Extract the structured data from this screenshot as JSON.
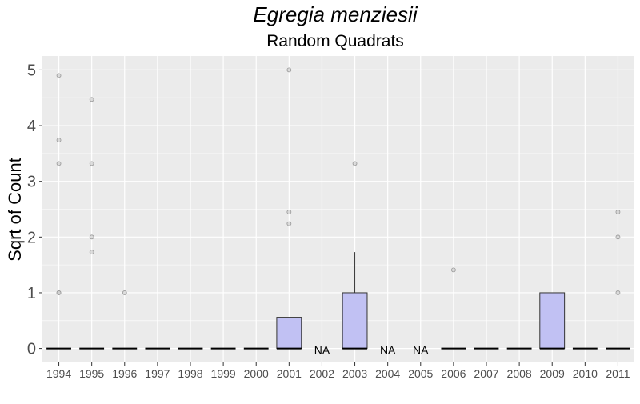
{
  "chart_data": {
    "type": "boxplot",
    "title": "Egregia menziesii",
    "subtitle": "Random Quadrats",
    "xlabel": "",
    "ylabel": "Sqrt of Count",
    "ylim": [
      -0.25,
      5.25
    ],
    "yticks": [
      0,
      1,
      2,
      3,
      4,
      5
    ],
    "grid": true,
    "colors": {
      "panel": "#ebebeb",
      "grid": "#ffffff",
      "box_fill": "#c1c1f3",
      "box_stroke": "#333333",
      "median": "#000000",
      "outlier": "#999999"
    },
    "categories": [
      "1994",
      "1995",
      "1996",
      "1997",
      "1998",
      "1999",
      "2000",
      "2001",
      "2002",
      "2003",
      "2004",
      "2005",
      "2006",
      "2007",
      "2008",
      "2009",
      "2010",
      "2011"
    ],
    "boxes": [
      {
        "year": "1994",
        "na": false,
        "q1": 0,
        "median": 0,
        "q3": 0,
        "whisker_low": 0,
        "whisker_high": 0,
        "outliers": [
          1,
          1,
          3.32,
          3.74,
          4.9
        ]
      },
      {
        "year": "1995",
        "na": false,
        "q1": 0,
        "median": 0,
        "q3": 0,
        "whisker_low": 0,
        "whisker_high": 0,
        "outliers": [
          1.73,
          2,
          3.32,
          4.47
        ]
      },
      {
        "year": "1996",
        "na": false,
        "q1": 0,
        "median": 0,
        "q3": 0,
        "whisker_low": 0,
        "whisker_high": 0,
        "outliers": [
          1
        ]
      },
      {
        "year": "1997",
        "na": false,
        "q1": 0,
        "median": 0,
        "q3": 0,
        "whisker_low": 0,
        "whisker_high": 0,
        "outliers": []
      },
      {
        "year": "1998",
        "na": false,
        "q1": 0,
        "median": 0,
        "q3": 0,
        "whisker_low": 0,
        "whisker_high": 0,
        "outliers": []
      },
      {
        "year": "1999",
        "na": false,
        "q1": 0,
        "median": 0,
        "q3": 0,
        "whisker_low": 0,
        "whisker_high": 0,
        "outliers": []
      },
      {
        "year": "2000",
        "na": false,
        "q1": 0,
        "median": 0,
        "q3": 0,
        "whisker_low": 0,
        "whisker_high": 0,
        "outliers": []
      },
      {
        "year": "2001",
        "na": false,
        "q1": 0,
        "median": 0,
        "q3": 0.56,
        "whisker_low": 0,
        "whisker_high": 0.56,
        "outliers": [
          2.24,
          2.45,
          5
        ]
      },
      {
        "year": "2002",
        "na": true,
        "label": "NA"
      },
      {
        "year": "2003",
        "na": false,
        "q1": 0,
        "median": 0,
        "q3": 1,
        "whisker_low": 0,
        "whisker_high": 1.73,
        "outliers": [
          3.32
        ]
      },
      {
        "year": "2004",
        "na": true,
        "label": "NA"
      },
      {
        "year": "2005",
        "na": true,
        "label": "NA"
      },
      {
        "year": "2006",
        "na": false,
        "q1": 0,
        "median": 0,
        "q3": 0,
        "whisker_low": 0,
        "whisker_high": 0,
        "outliers": [
          1.41
        ]
      },
      {
        "year": "2007",
        "na": false,
        "q1": 0,
        "median": 0,
        "q3": 0,
        "whisker_low": 0,
        "whisker_high": 0,
        "outliers": []
      },
      {
        "year": "2008",
        "na": false,
        "q1": 0,
        "median": 0,
        "q3": 0,
        "whisker_low": 0,
        "whisker_high": 0,
        "outliers": []
      },
      {
        "year": "2009",
        "na": false,
        "q1": 0,
        "median": 0,
        "q3": 1,
        "whisker_low": 0,
        "whisker_high": 1,
        "outliers": []
      },
      {
        "year": "2010",
        "na": false,
        "q1": 0,
        "median": 0,
        "q3": 0,
        "whisker_low": 0,
        "whisker_high": 0,
        "outliers": []
      },
      {
        "year": "2011",
        "na": false,
        "q1": 0,
        "median": 0,
        "q3": 0,
        "whisker_low": 0,
        "whisker_high": 0,
        "outliers": [
          1,
          2,
          2.45
        ]
      }
    ]
  }
}
